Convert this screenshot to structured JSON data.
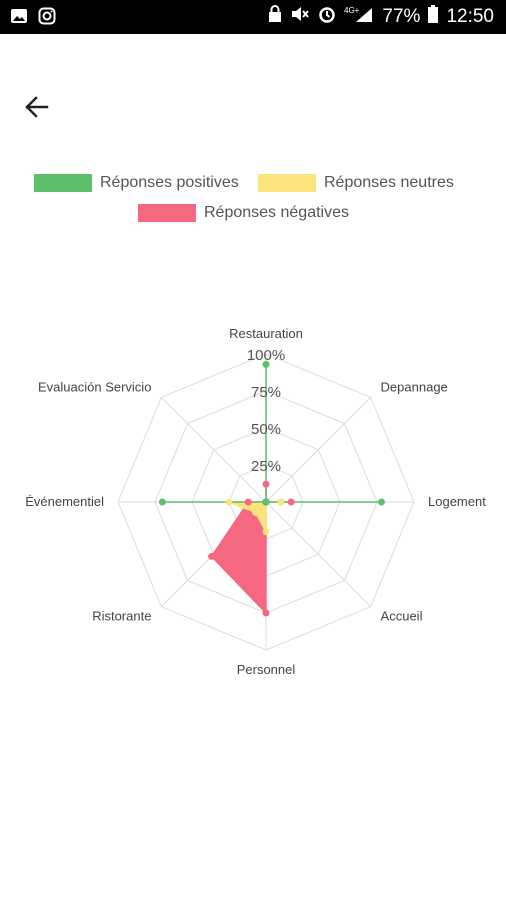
{
  "status_bar": {
    "battery": "77%",
    "time": "12:50",
    "network": "4G+"
  },
  "legend": [
    {
      "name": "Réponses positives",
      "color": "#5cbf6a"
    },
    {
      "name": "Réponses neutres",
      "color": "#fde37c"
    },
    {
      "name": "Réponses négatives",
      "color": "#f66882"
    }
  ],
  "chart_data": {
    "type": "radar",
    "categories": [
      "Restauration",
      "Depannage",
      "Logement",
      "Accueil",
      "Personnel",
      "Ristorante",
      "Événementiel",
      "Evaluación Servicio"
    ],
    "ticks": [
      "25%",
      "50%",
      "75%",
      "100%"
    ],
    "range": [
      0,
      100
    ],
    "series": [
      {
        "name": "Réponses positives",
        "values": [
          93,
          0,
          78,
          0,
          0,
          0,
          70,
          0
        ]
      },
      {
        "name": "Réponses neutres",
        "values": [
          0,
          0,
          10,
          0,
          20,
          10,
          25,
          0
        ]
      },
      {
        "name": "Réponses négatives",
        "values": [
          12,
          0,
          17,
          0,
          75,
          52,
          12,
          0
        ]
      }
    ]
  }
}
